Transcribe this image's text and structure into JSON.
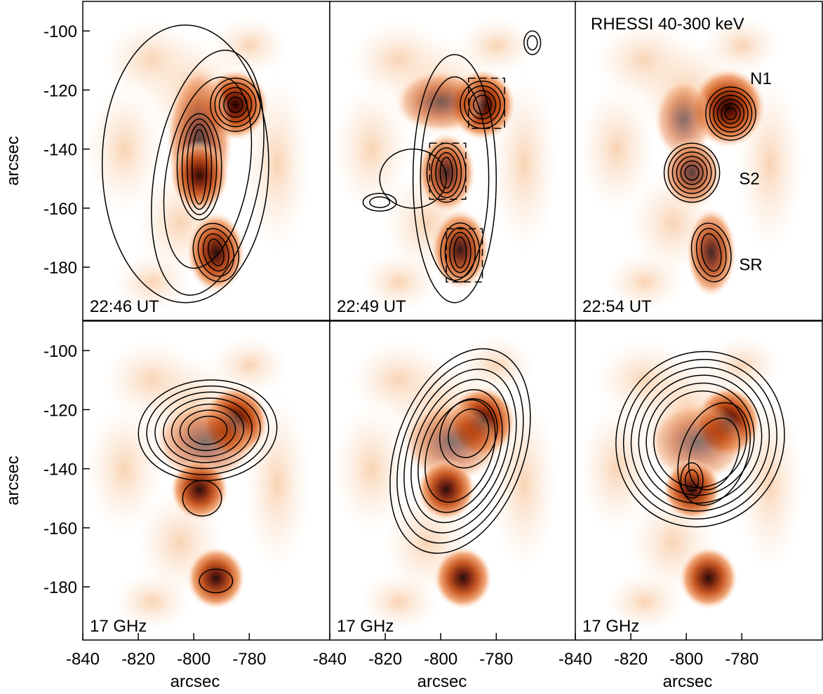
{
  "chart_data": [
    {
      "type": "image",
      "label": "22:46 UT",
      "ylabel": "arcsec",
      "xlim": [
        -840,
        -751
      ],
      "ylim": [
        -198,
        -90
      ],
      "yticks": [
        -100,
        -120,
        -140,
        -160,
        -180
      ]
    },
    {
      "type": "image",
      "label": "22:49 UT",
      "xlim": [
        -840,
        -751
      ],
      "ylim": [
        -198,
        -90
      ]
    },
    {
      "type": "image",
      "label": "22:54 UT",
      "title": "RHESSI 40-300 keV",
      "annotations": [
        "N1",
        "S2",
        "SR"
      ],
      "xlim": [
        -840,
        -751
      ],
      "ylim": [
        -198,
        -90
      ]
    },
    {
      "type": "image",
      "label": "17 GHz",
      "ylabel": "arcsec",
      "xlabel": "arcsec",
      "xlim": [
        -840,
        -751
      ],
      "ylim": [
        -198,
        -90
      ],
      "yticks": [
        -100,
        -120,
        -140,
        -160,
        -180
      ],
      "xticks": [
        -840,
        -820,
        -800,
        -780
      ]
    },
    {
      "type": "image",
      "label": "17 GHz",
      "xlabel": "arcsec",
      "xlim": [
        -840,
        -751
      ],
      "ylim": [
        -198,
        -90
      ],
      "xticks": [
        -840,
        -820,
        -800,
        -780
      ]
    },
    {
      "type": "image",
      "label": "17 GHz",
      "xlabel": "arcsec",
      "xlim": [
        -840,
        -751
      ],
      "ylim": [
        -198,
        -90
      ],
      "xticks": [
        -840,
        -820,
        -800,
        -780
      ]
    }
  ]
}
